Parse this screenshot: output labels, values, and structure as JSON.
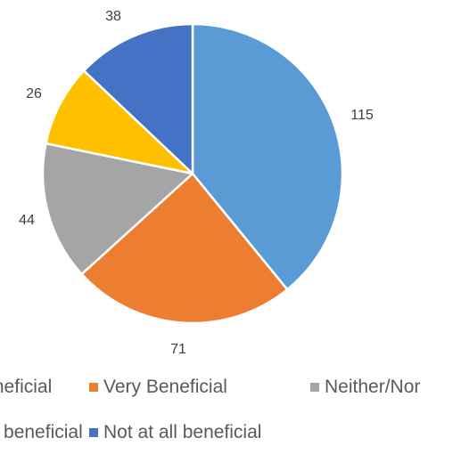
{
  "chart_data": {
    "type": "pie",
    "slices": [
      {
        "label": "Extremely Beneficial",
        "value": 115,
        "color": "#5B9BD5"
      },
      {
        "label": "Very Beneficial",
        "value": 71,
        "color": "#ED7D31"
      },
      {
        "label": "Neither/Nor",
        "value": 44,
        "color": "#A5A5A5"
      },
      {
        "label": "Not very beneficial",
        "value": 26,
        "color": "#FFC000"
      },
      {
        "label": "Not at all beneficial",
        "value": 38,
        "color": "#4472C4"
      }
    ],
    "legend_position": "bottom",
    "start_angle": "12 o'clock",
    "direction": "clockwise"
  }
}
